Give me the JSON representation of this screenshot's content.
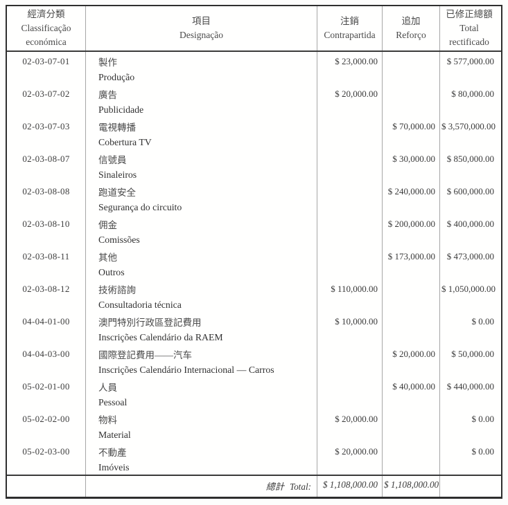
{
  "document": {
    "type": "budget-rectification-table",
    "currency_symbol": "$"
  },
  "header": {
    "classification_zh": "經濟分類",
    "classification_pt1": "Classificação",
    "classification_pt2": "económica",
    "designation_zh": "項目",
    "designation_pt": "Designação",
    "cancellation_zh": "注銷",
    "cancellation_pt": "Contrapartida",
    "addition_zh": "追加",
    "addition_pt": "Reforço",
    "rectified_zh": "已修正總額",
    "rectified_pt1": "Total",
    "rectified_pt2": "rectificado"
  },
  "rows": [
    {
      "code": "02-03-07-01",
      "zh": "製作",
      "pt": "Produção",
      "contrapartida": "$ 23,000.00",
      "reforco": "",
      "total": "$ 577,000.00"
    },
    {
      "code": "02-03-07-02",
      "zh": "廣告",
      "pt": "Publicidade",
      "contrapartida": "$ 20,000.00",
      "reforco": "",
      "total": "$ 80,000.00"
    },
    {
      "code": "02-03-07-03",
      "zh": "電視轉播",
      "pt": "Cobertura TV",
      "contrapartida": "",
      "reforco": "$ 70,000.00",
      "total": "$ 3,570,000.00"
    },
    {
      "code": "02-03-08-07",
      "zh": "信號員",
      "pt": "Sinaleiros",
      "contrapartida": "",
      "reforco": "$ 30,000.00",
      "total": "$ 850,000.00"
    },
    {
      "code": "02-03-08-08",
      "zh": "跑道安全",
      "pt": "Segurança do circuito",
      "contrapartida": "",
      "reforco": "$ 240,000.00",
      "total": "$ 600,000.00"
    },
    {
      "code": "02-03-08-10",
      "zh": "佣金",
      "pt": "Comissões",
      "contrapartida": "",
      "reforco": "$ 200,000.00",
      "total": "$ 400,000.00"
    },
    {
      "code": "02-03-08-11",
      "zh": "其他",
      "pt": "Outros",
      "contrapartida": "",
      "reforco": "$ 173,000.00",
      "total": "$ 473,000.00"
    },
    {
      "code": "02-03-08-12",
      "zh": "技術諮詢",
      "pt": "Consultadoria técnica",
      "contrapartida": "$ 110,000.00",
      "reforco": "",
      "total": "$ 1,050,000.00"
    },
    {
      "code": "04-04-01-00",
      "zh": "澳門特別行政區登記費用",
      "pt": "Inscrições Calendário da RAEM",
      "contrapartida": "$ 10,000.00",
      "reforco": "",
      "total": "$ 0.00"
    },
    {
      "code": "04-04-03-00",
      "zh": "國際登記費用——汽车",
      "pt": "Inscrições Calendário Internacional — Carros",
      "contrapartida": "",
      "reforco": "$ 20,000.00",
      "total": "$ 50,000.00"
    },
    {
      "code": "05-02-01-00",
      "zh": "人員",
      "pt": "Pessoal",
      "contrapartida": "",
      "reforco": "$ 40,000.00",
      "total": "$ 440,000.00"
    },
    {
      "code": "05-02-02-00",
      "zh": "物料",
      "pt": "Material",
      "contrapartida": "$ 20,000.00",
      "reforco": "",
      "total": "$ 0.00"
    },
    {
      "code": "05-02-03-00",
      "zh": "不動產",
      "pt": "Imóveis",
      "contrapartida": "$ 20,000.00",
      "reforco": "",
      "total": "$ 0.00"
    }
  ],
  "total_row": {
    "label_zh": "總計",
    "label_pt": "Total:",
    "contrapartida": "$ 1,108,000.00",
    "reforco": "$ 1,108,000.00",
    "total": ""
  }
}
